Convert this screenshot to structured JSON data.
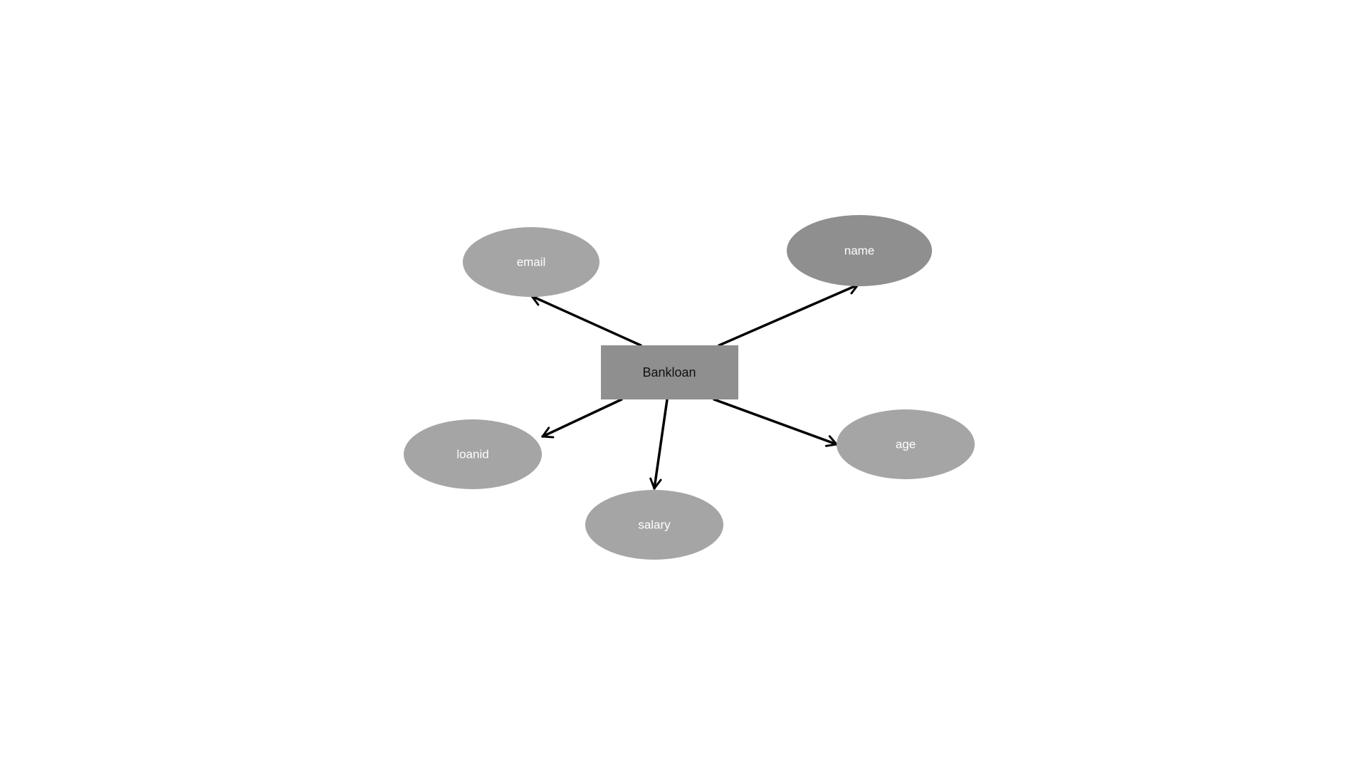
{
  "diagram": {
    "entity": {
      "label": "Bankloan",
      "fill": "#8f8f8f"
    },
    "attributes": [
      {
        "id": "email",
        "label": "email",
        "fill": "#a5a5a5"
      },
      {
        "id": "name",
        "label": "name",
        "fill": "#8f8f8f"
      },
      {
        "id": "loanid",
        "label": "loanid",
        "fill": "#a5a5a5"
      },
      {
        "id": "salary",
        "label": "salary",
        "fill": "#a5a5a5"
      },
      {
        "id": "age",
        "label": "age",
        "fill": "#a5a5a5"
      }
    ],
    "edges": [
      {
        "from": "Bankloan",
        "to": "email"
      },
      {
        "from": "Bankloan",
        "to": "name"
      },
      {
        "from": "Bankloan",
        "to": "loanid"
      },
      {
        "from": "Bankloan",
        "to": "salary"
      },
      {
        "from": "Bankloan",
        "to": "age"
      }
    ],
    "colors": {
      "background": "#ffffff",
      "edge": "#000000",
      "attribute_text": "#ffffff",
      "entity_text": "#111111"
    }
  }
}
